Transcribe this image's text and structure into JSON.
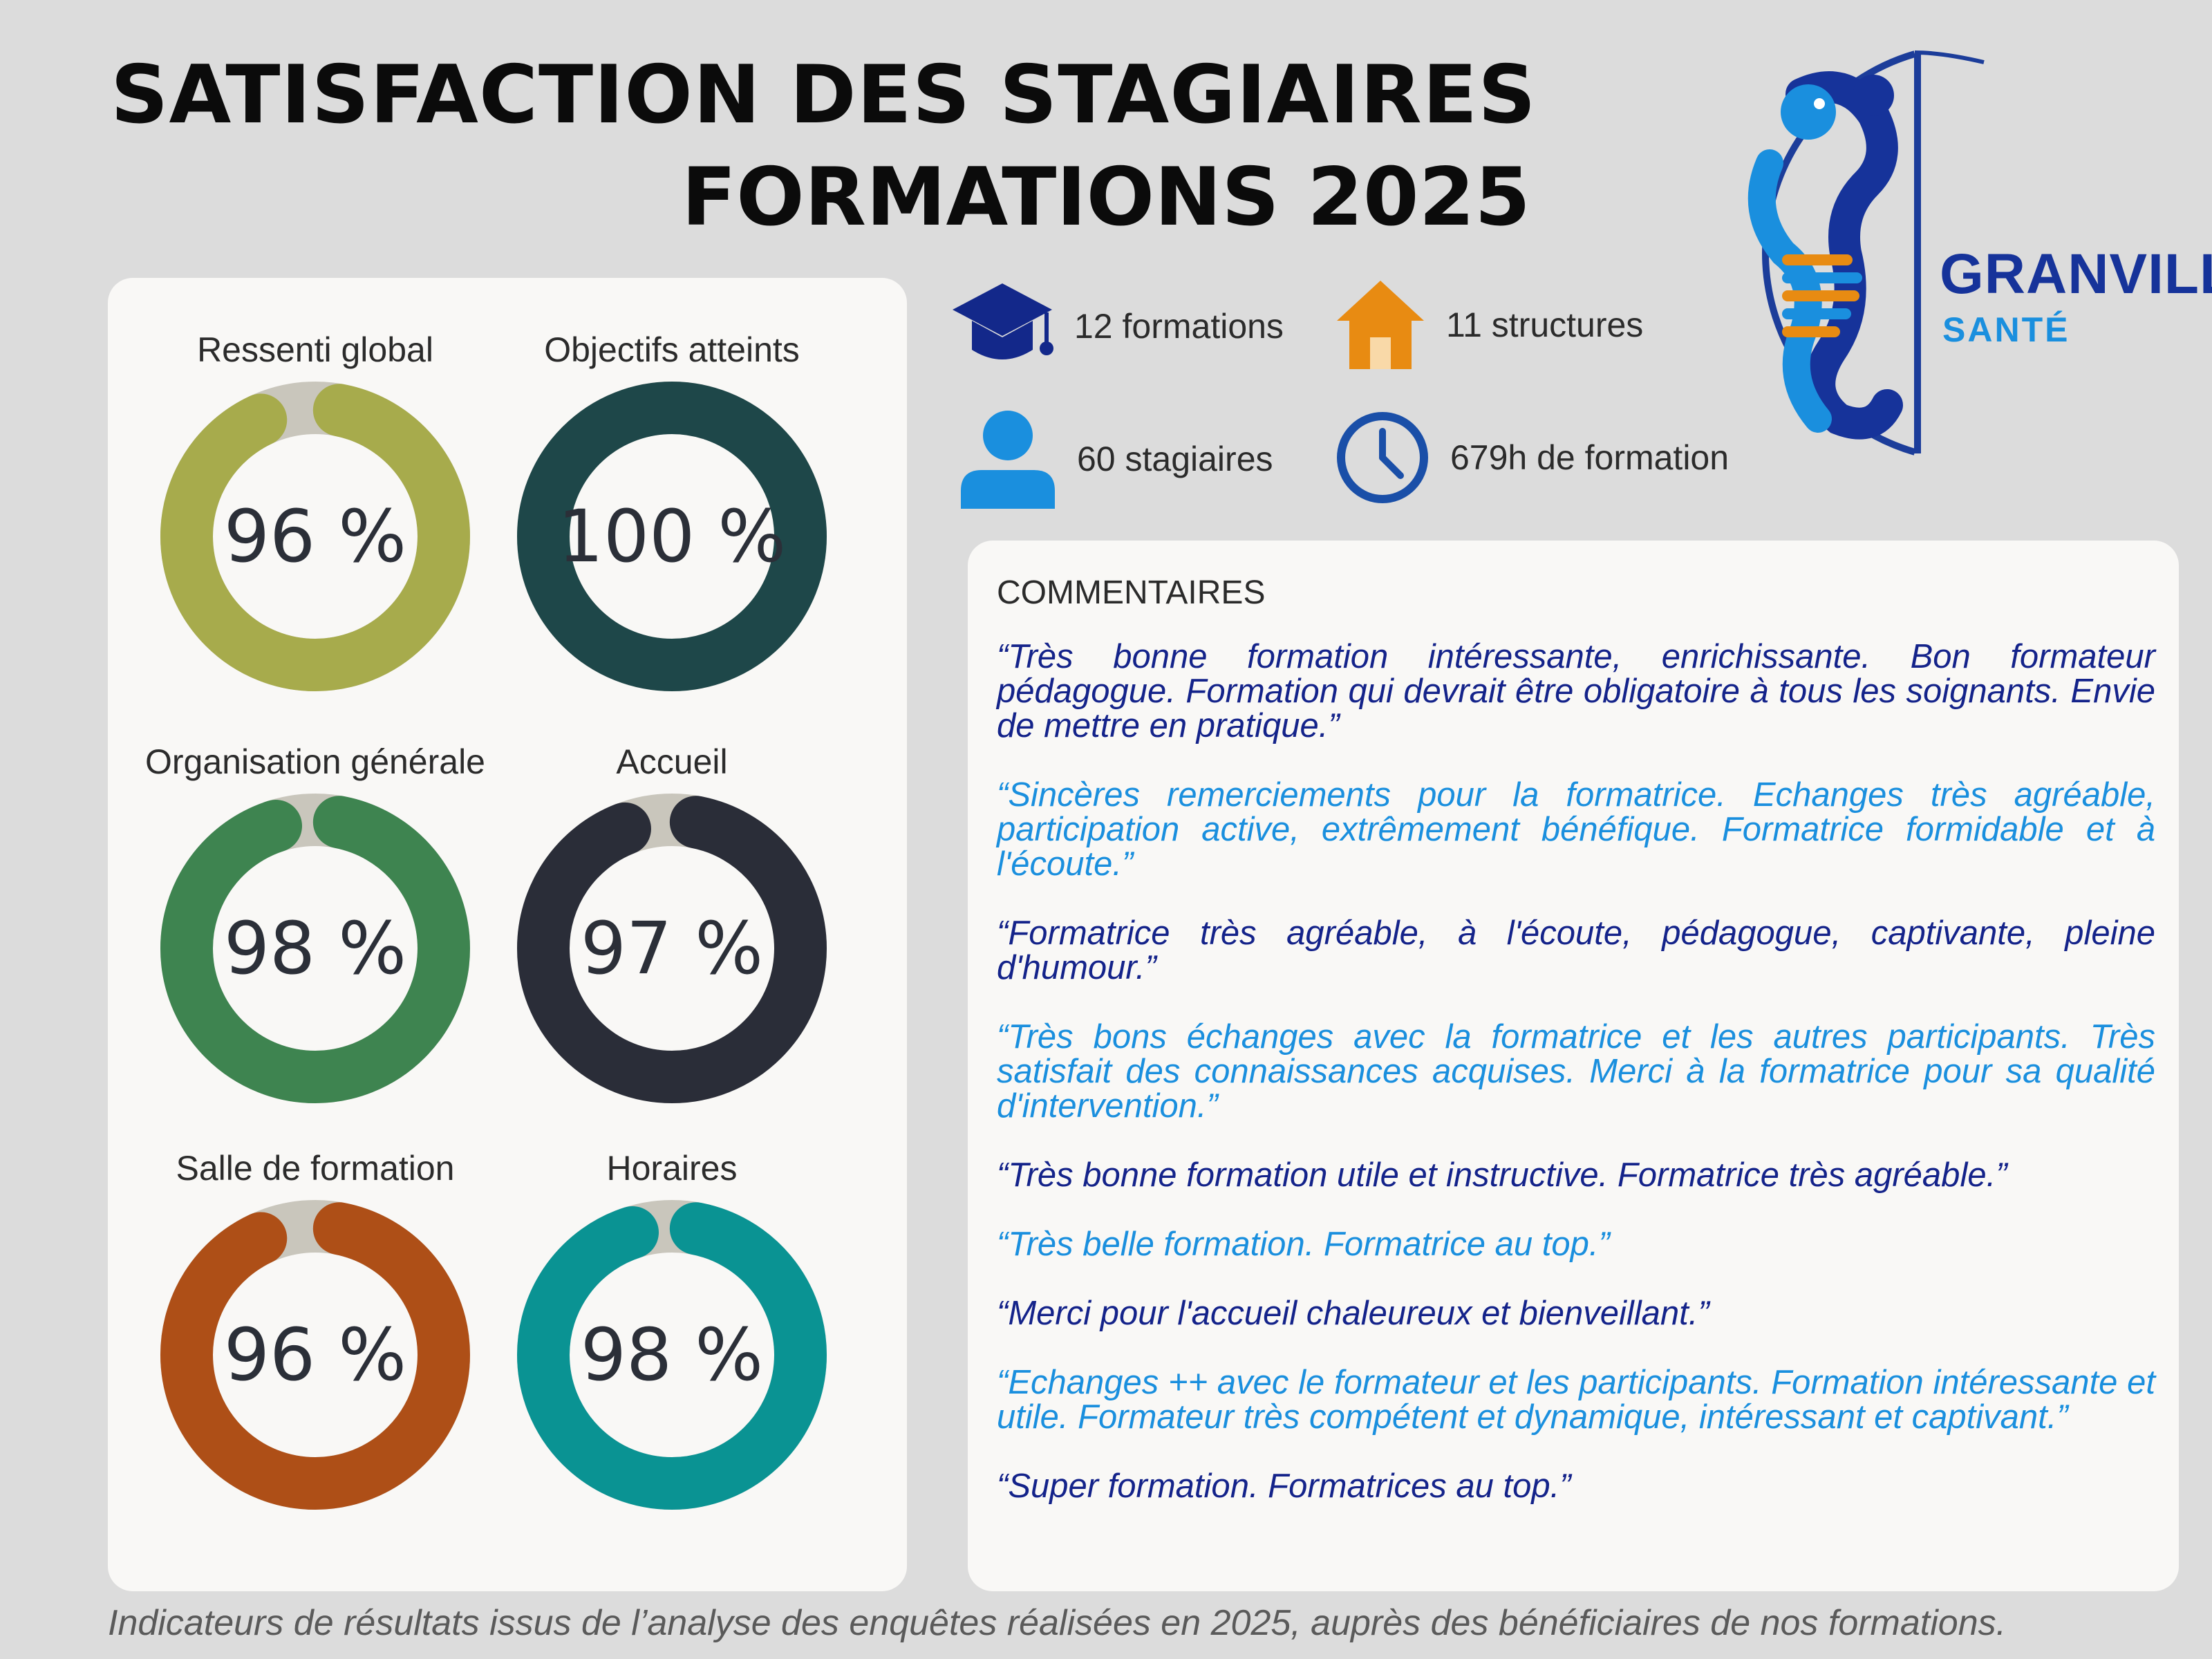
{
  "header": {
    "title": "SATISFACTION DES STAGIAIRES",
    "subtitle": "FORMATIONS 2025"
  },
  "brand": {
    "name": "GRANVILLE",
    "sub": "SANTÉ",
    "logo_icon": "seahorse-dna-icon"
  },
  "indicators": [
    {
      "label": "Ressenti global",
      "value": 96,
      "display": "96 %",
      "color": "#a7ab4c"
    },
    {
      "label": "Objectifs atteints",
      "value": 100,
      "display": "100 %",
      "color": "#1e4749"
    },
    {
      "label": "Organisation générale",
      "value": 98,
      "display": "98 %",
      "color": "#3e8450"
    },
    {
      "label": "Accueil",
      "value": 97,
      "display": "97 %",
      "color": "#2a2d38"
    },
    {
      "label": "Salle de formation",
      "value": 96,
      "display": "96 %",
      "color": "#ae4f17"
    },
    {
      "label": "Horaires",
      "value": 98,
      "display": "98 %",
      "color": "#0a9393"
    }
  ],
  "track_color": "#c9c6bc",
  "stats": {
    "formations": {
      "text": "12 formations",
      "icon": "graduation-cap-icon",
      "color": "#13288a"
    },
    "structures": {
      "text": "11 structures",
      "icon": "house-icon",
      "color": "#e88b12"
    },
    "stagiaires": {
      "text": "60 stagiaires",
      "icon": "person-icon",
      "color": "#1a8fde"
    },
    "hours": {
      "text": "679h de formation",
      "icon": "clock-icon",
      "color": "#1a4fa8"
    }
  },
  "comments": {
    "heading": "COMMENTAIRES",
    "items": [
      "“Très bonne formation intéressante, enrichissante. Bon formateur pédagogue. Formation qui devrait être obligatoire à tous les soignants. Envie de mettre en pratique.”",
      "“Sincères remerciements pour la formatrice. Echanges très agréable, participation active, extrêmement bénéfique. Formatrice formidable et à l'écoute.”",
      "“Formatrice très agréable, à l'écoute, pédagogue, captivante, pleine d'humour.”",
      "“Très bons échanges avec la formatrice et les autres participants. Très satisfait des connaissances acquises. Merci à la formatrice pour sa qualité d'intervention.”",
      "“Très bonne formation utile et instructive. Formatrice très agréable.”",
      "“Très belle formation. Formatrice au top.”",
      "“Merci pour l'accueil chaleureux et bienveillant.”",
      "“Echanges ++ avec le formateur et les participants. Formation intéressante et utile. Formateur très compétent et dynamique, intéressant et captivant.”",
      "“Super formation. Formatrices au top.”"
    ]
  },
  "footer": "Indicateurs de résultats issus de l’analyse des enquêtes réalisées en 2025, auprès des bénéficiaires de nos formations."
}
